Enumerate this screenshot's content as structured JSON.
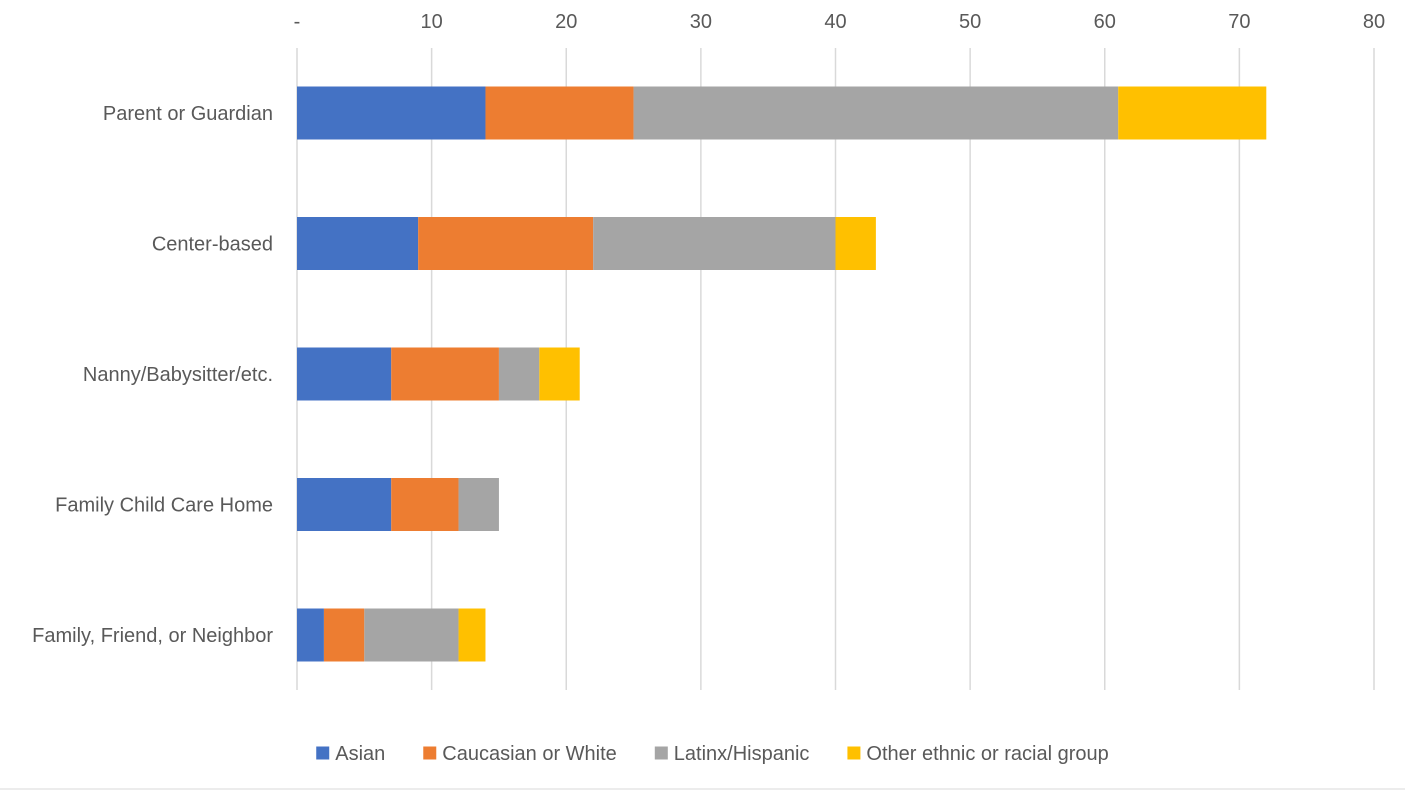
{
  "chart_data": {
    "type": "bar",
    "orientation": "horizontal",
    "stacked": true,
    "title": "",
    "xlabel": "",
    "ylabel": "",
    "categories": [
      "Parent or Guardian",
      "Center-based",
      "Nanny/Babysitter/etc.",
      "Family Child Care Home",
      "Family, Friend, or Neighbor"
    ],
    "series": [
      {
        "name": "Asian",
        "color": "#4472c4",
        "values": [
          14,
          9,
          7,
          7,
          2
        ]
      },
      {
        "name": "Caucasian or White",
        "color": "#ed7d31",
        "values": [
          11,
          13,
          8,
          5,
          3
        ]
      },
      {
        "name": "Latinx/Hispanic",
        "color": "#a5a5a5",
        "values": [
          36,
          18,
          3,
          3,
          7
        ]
      },
      {
        "name": "Other ethnic or racial group",
        "color": "#ffc000",
        "values": [
          11,
          3,
          3,
          0,
          2
        ]
      }
    ],
    "xlim": [
      0,
      80
    ],
    "x_ticks": [
      0,
      10,
      20,
      30,
      40,
      50,
      60,
      70,
      80
    ],
    "x_tick_labels": [
      "-",
      "10",
      "20",
      "30",
      "40",
      "50",
      "60",
      "70",
      "80"
    ],
    "axis_position": "top",
    "grid": true,
    "legend_position": "bottom"
  }
}
